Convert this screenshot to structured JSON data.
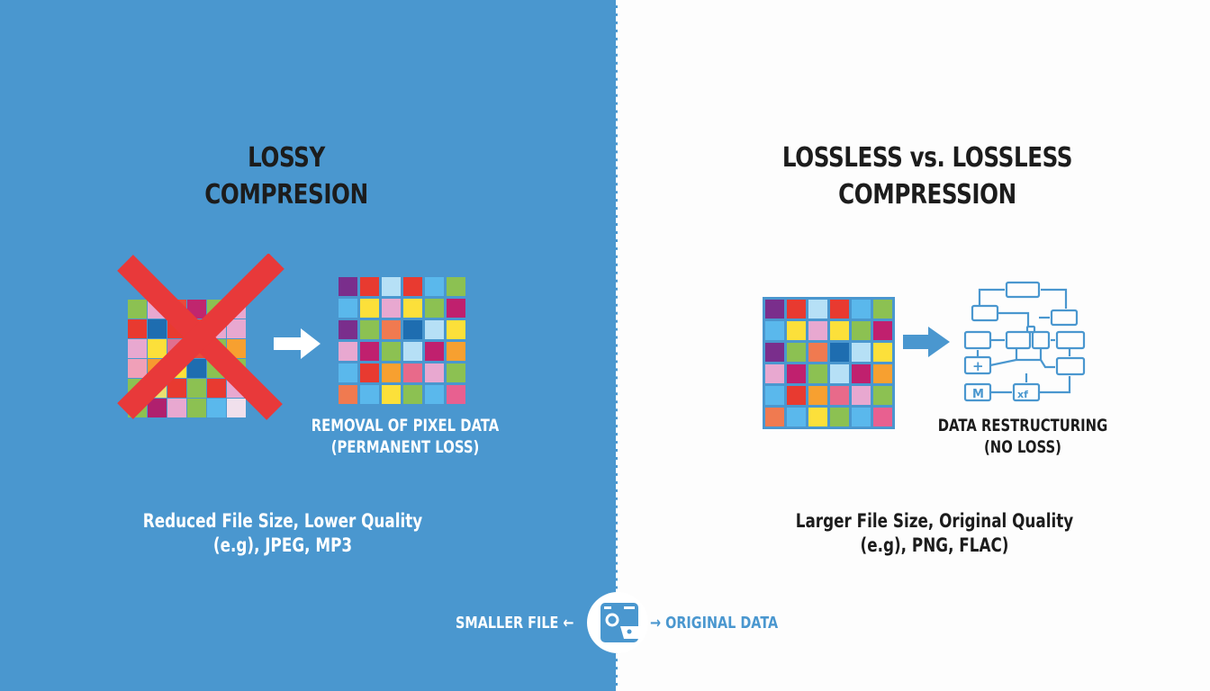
{
  "left": {
    "title_line1": "LOSSY",
    "title_line2": "COMPRESION",
    "caption_line1": "REMOVAL OF PIXEL DATA",
    "caption_line2": "(PERMANENT LOSS)",
    "sub_line1": "Reduced File Size, Lower Quality",
    "sub_line2": "(e.g), JPEG, MP3",
    "bg_color": "#4a97cf",
    "original_grid": [
      "#8cc152",
      "#e8a8d0",
      "#e84a3a",
      "#c0266e",
      "#8cc152",
      "#e8a8d0",
      "#e83a30",
      "#1e6db0",
      "#e83a30",
      "#e84a3a",
      "#e8a8d0",
      "#e8a8d0",
      "#e8a8d0",
      "#fce03a",
      "#e07090",
      "#e84a3a",
      "#8cc152",
      "#f7a030",
      "#f0a0b8",
      "#f79a30",
      "#fce03a",
      "#1e6db0",
      "#8cc152",
      "#8cc152",
      "#8cc152",
      "#e8e070",
      "#e83a30",
      "#8cc152",
      "#e83a30",
      "#e8a8d0",
      "#8cc152",
      "#b0206e",
      "#e8a8d0",
      "#8cc152",
      "#5ab8ec",
      "#f0e0ec"
    ],
    "result_grid": [
      "#7a2e8c",
      "#e83a30",
      "#b6e0f6",
      "#e83a30",
      "#5ab8ec",
      "#8cc152",
      "#5ab8ec",
      "#fce03a",
      "#e8a8d0",
      "#fce03a",
      "#8cc152",
      "#c0206e",
      "#7a2e8c",
      "#8cc152",
      "#f07a50",
      "#1e6db0",
      "#b6e0f6",
      "#fce03a",
      "#e8a8d0",
      "#c0206e",
      "#8cc152",
      "#b6e0f6",
      "#c0206e",
      "#f7a030",
      "#5ab8ec",
      "#e83a30",
      "#f7a030",
      "#e86a8a",
      "#e8a8d0",
      "#8cc152",
      "#f07a50",
      "#5ab8ec",
      "#fce03a",
      "#8cc152",
      "#5ab8ec",
      "#e86090"
    ]
  },
  "right": {
    "title_line1": "LOSSLESS vs. LOSSLESS",
    "title_line2": "COMPRESSION",
    "caption_line1": "DATA RESTRUCTURING",
    "caption_line2": "(NO LOSS)",
    "sub_line1": "Larger File Size, Original Quality",
    "sub_line2": "(e.g), PNG, FLAC)",
    "grid": [
      "#7a2e8c",
      "#e83a30",
      "#b6e0f6",
      "#e83a30",
      "#5ab8ec",
      "#8cc152",
      "#5ab8ec",
      "#fce03a",
      "#e8a8d0",
      "#fce03a",
      "#8cc152",
      "#c0206e",
      "#7a2e8c",
      "#8cc152",
      "#f07a50",
      "#1e6db0",
      "#b6e0f6",
      "#fce03a",
      "#e8a8d0",
      "#c0206e",
      "#8cc152",
      "#b6e0f6",
      "#c0206e",
      "#f7a030",
      "#5ab8ec",
      "#e83a30",
      "#f7a030",
      "#e86a8a",
      "#e8a8d0",
      "#8cc152",
      "#f07a50",
      "#5ab8ec",
      "#fce03a",
      "#8cc152",
      "#5ab8ec",
      "#e86090"
    ]
  },
  "bottom": {
    "left_label": "SMALLER FILE",
    "right_label": "ORIGINAL DATA"
  },
  "colors": {
    "accent_blue": "#4a97cf",
    "cross_red": "#e8393a",
    "title_dark": "#1c1c1c"
  }
}
